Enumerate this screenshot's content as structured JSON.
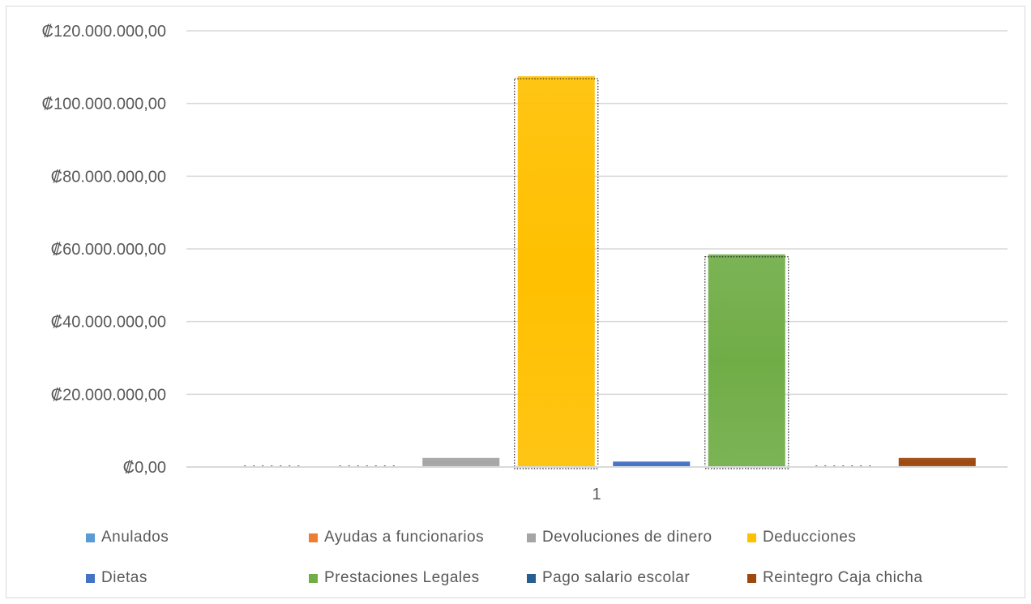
{
  "chart_data": {
    "type": "bar",
    "categories": [
      "1"
    ],
    "series": [
      {
        "name": "Anulados",
        "values": [
          0
        ],
        "color": "#5B9BD5"
      },
      {
        "name": "Ayudas a funcionarios",
        "values": [
          0
        ],
        "color": "#ED7D31"
      },
      {
        "name": "Devoluciones de dinero",
        "values": [
          2500000
        ],
        "color": "#A5A5A5"
      },
      {
        "name": "Deducciones",
        "values": [
          107500000
        ],
        "color": "#FFC000"
      },
      {
        "name": "Dietas",
        "values": [
          1500000
        ],
        "color": "#4472C4"
      },
      {
        "name": "Prestaciones Legales",
        "values": [
          58500000
        ],
        "color": "#70AD47"
      },
      {
        "name": "Pago salario escolar",
        "values": [
          0
        ],
        "color": "#255E91"
      },
      {
        "name": "Reintegro Caja chicha",
        "values": [
          2500000
        ],
        "color": "#9E480E"
      }
    ],
    "ylim": [
      0,
      120000000
    ],
    "yticks": [
      "₡0,00",
      "₡20.000.000,00",
      "₡40.000.000,00",
      "₡60.000.000,00",
      "₡80.000.000,00",
      "₡100.000.000,00",
      "₡120.000.000,00"
    ],
    "grid": true,
    "legend_position": "bottom"
  }
}
